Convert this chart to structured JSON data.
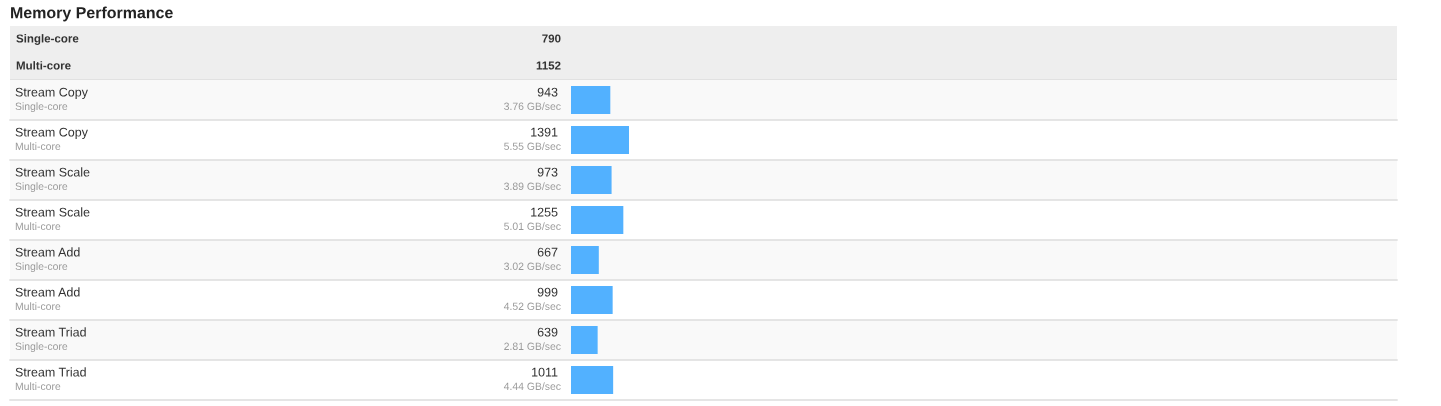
{
  "chart_data": [
    {
      "type": "other",
      "title": "Memory Performance",
      "categories": [
        "Single-core",
        "Multi-core"
      ],
      "values": [
        790,
        1152
      ],
      "data_labels": true
    },
    {
      "type": "bar",
      "orientation": "horizontal",
      "color": "#52b1ff",
      "categories": [
        "Stream Copy\nSingle-core",
        "Stream Copy\nMulti-core",
        "Stream Scale\nSingle-core",
        "Stream Scale\nMulti-core",
        "Stream Add\nSingle-core",
        "Stream Add\nMulti-core",
        "Stream Triad\nSingle-core",
        "Stream Triad\nMulti-core"
      ],
      "values": [
        943,
        1391,
        973,
        1255,
        667,
        999,
        639,
        1011
      ],
      "value_labels": [
        "943\n3.76 GB/sec",
        "1391\n5.55 GB/sec",
        "973\n3.89 GB/sec",
        "1255\n5.01 GB/sec",
        "667\n3.02 GB/sec",
        "999\n4.52 GB/sec",
        "639\n2.81 GB/sec",
        "1011\n4.44 GB/sec"
      ]
    }
  ]
}
